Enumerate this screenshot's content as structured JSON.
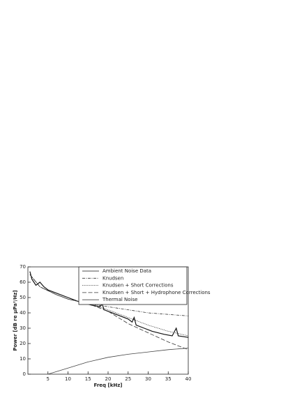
{
  "chart_data": {
    "type": "line",
    "xlabel": "Freq [kHz]",
    "ylabel": "Power [dB re μPa²/Hz]",
    "xlim": [
      0,
      40
    ],
    "ylim": [
      0,
      70
    ],
    "xticks": [
      5,
      10,
      15,
      20,
      25,
      30,
      35,
      40
    ],
    "yticks": [
      0,
      10,
      20,
      30,
      40,
      50,
      60,
      70
    ],
    "legend": "upper right",
    "series": [
      {
        "name": "Ambient Noise Data",
        "color": "#111111",
        "style": "solid",
        "x": [
          0.5,
          1,
          1.5,
          2,
          3,
          4,
          5,
          7,
          10,
          13,
          16,
          18,
          18.5,
          19,
          22,
          25,
          26,
          26.5,
          27,
          29,
          31,
          34,
          36,
          37,
          37.5,
          40
        ],
        "values": [
          67,
          62,
          60,
          58,
          60,
          57,
          55,
          53,
          50,
          47,
          45,
          44,
          46,
          42,
          39,
          36,
          34,
          37,
          32,
          30,
          28,
          26,
          25,
          30,
          25,
          24
        ]
      },
      {
        "name": "Knudsen",
        "color": "#333333",
        "style": "dashdot",
        "x": [
          0.5,
          3,
          7,
          10,
          15,
          20,
          25,
          30,
          35,
          40
        ],
        "values": [
          65,
          57,
          52,
          49,
          46,
          44,
          42,
          40,
          39,
          38
        ]
      },
      {
        "name": "Knudsen + Short Corrections",
        "color": "#333333",
        "style": "dotted",
        "x": [
          0.5,
          3,
          7,
          10,
          15,
          20,
          25,
          30,
          35,
          40
        ],
        "values": [
          65,
          57,
          52,
          49,
          46,
          42,
          37,
          32,
          28,
          25
        ]
      },
      {
        "name": "Knudsen + Short + Hydrophone Corrections",
        "color": "#333333",
        "style": "dashed",
        "x": [
          0.5,
          3,
          7,
          10,
          15,
          20,
          25,
          30,
          35,
          40
        ],
        "values": [
          65,
          57,
          52,
          49,
          46,
          41,
          33,
          27,
          21,
          16
        ]
      },
      {
        "name": "Thermal Noise",
        "color": "#444444",
        "style": "solid",
        "x": [
          5,
          10,
          15,
          20,
          25,
          30,
          35,
          40
        ],
        "values": [
          0,
          4,
          8,
          11,
          13,
          14.5,
          16,
          17
        ]
      }
    ]
  }
}
